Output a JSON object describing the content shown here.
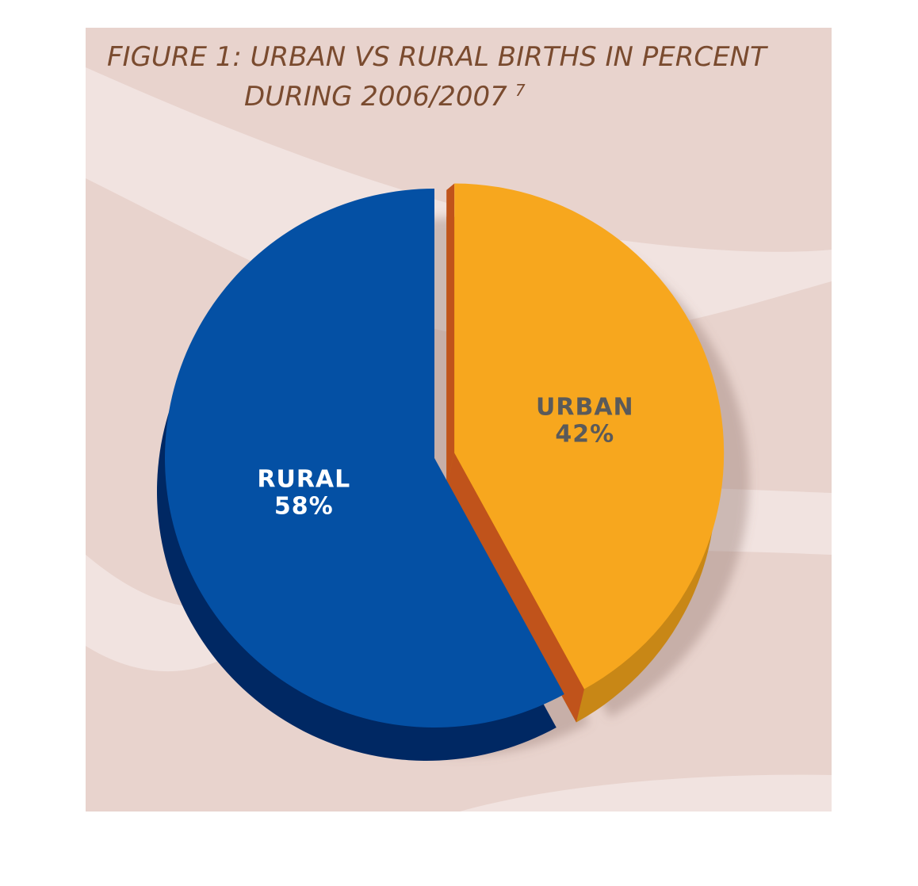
{
  "chart_data": {
    "type": "pie",
    "title_line1": "FIGURE 1: URBAN VS RURAL BIRTHS IN PERCENT",
    "title_line2": "DURING 2006/2007",
    "title_footnote": "7",
    "categories": [
      "RURAL",
      "URBAN"
    ],
    "values": [
      58,
      42
    ],
    "value_labels": [
      "58%",
      "42%"
    ],
    "exploded": "URBAN",
    "style": "3d",
    "colors": {
      "background": "#e8d3cd",
      "background_waves": "#f1e3e0",
      "title": "#7a4b2f",
      "rural": "#0450a4",
      "rural_side": "#002863",
      "urban": "#f7a71e",
      "urban_edge": "#c0531b",
      "urban_side": "#c88716",
      "rural_label": "#ffffff",
      "urban_label": "#5a5a5a"
    }
  }
}
